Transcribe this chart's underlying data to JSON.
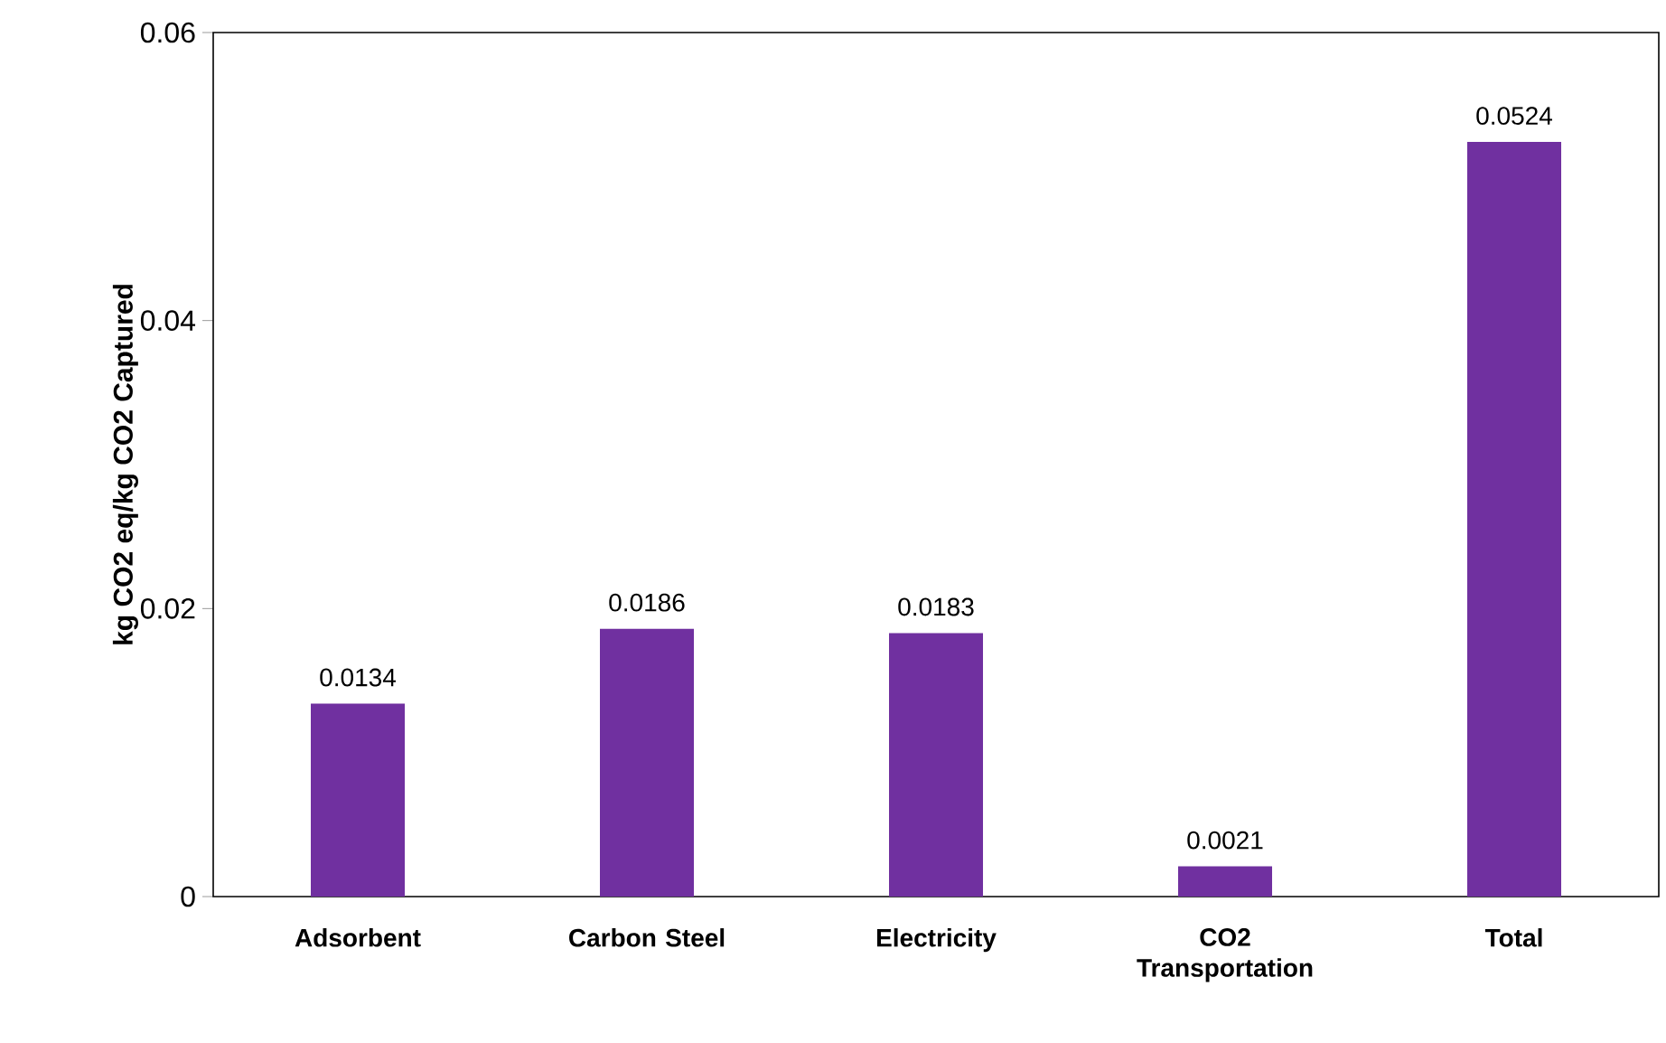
{
  "chart_data": {
    "type": "bar",
    "ylabel": "kg CO2 eq/kg CO2 Captured",
    "categories": [
      "Adsorbent",
      "Carbon Steel",
      "Electricity",
      "CO2 Transportation",
      "Total"
    ],
    "values": [
      0.0134,
      0.0186,
      0.0183,
      0.0021,
      0.0524
    ],
    "color": "#7030a0",
    "ylim": [
      0,
      0.06
    ],
    "yticks": [
      0,
      0.02,
      0.04,
      0.06
    ],
    "data_labels": true
  }
}
